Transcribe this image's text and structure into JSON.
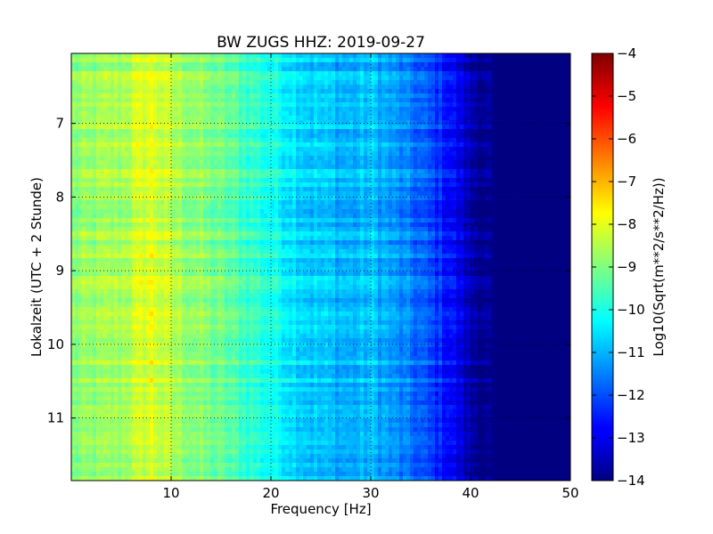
{
  "chart_data": {
    "type": "heatmap",
    "title": "BW ZUGS HHZ: 2019-09-27",
    "xlabel": "Frequency [Hz]",
    "ylabel": "Lokalzeit (UTC + 2 Stunde)",
    "xlim": [
      0,
      50
    ],
    "ylim": [
      11.85,
      6.05
    ],
    "y_inverted": true,
    "xticks": [
      10,
      20,
      30,
      40,
      50
    ],
    "yticks": [
      7,
      8,
      9,
      10,
      11
    ],
    "grid": true,
    "colormap": "jet",
    "colorbar": {
      "label": "Log10(Sqrt(m**2/s**2/Hz))",
      "range": [
        -14,
        -4
      ],
      "ticks": [
        -4,
        -5,
        -6,
        -7,
        -8,
        -9,
        -10,
        -11,
        -12,
        -13,
        -14
      ],
      "placement": "right"
    },
    "frequency_profile": {
      "frequency_hz": [
        0,
        5,
        8,
        10,
        15,
        20,
        24,
        28,
        30,
        35,
        38,
        40,
        42,
        43,
        50
      ],
      "log10_amplitude": [
        -8.9,
        -8.6,
        -8.0,
        -8.5,
        -9.2,
        -10.0,
        -10.7,
        -11.0,
        -10.8,
        -11.8,
        -12.6,
        -13.5,
        -13.9,
        -14.0,
        -14.0
      ]
    }
  }
}
